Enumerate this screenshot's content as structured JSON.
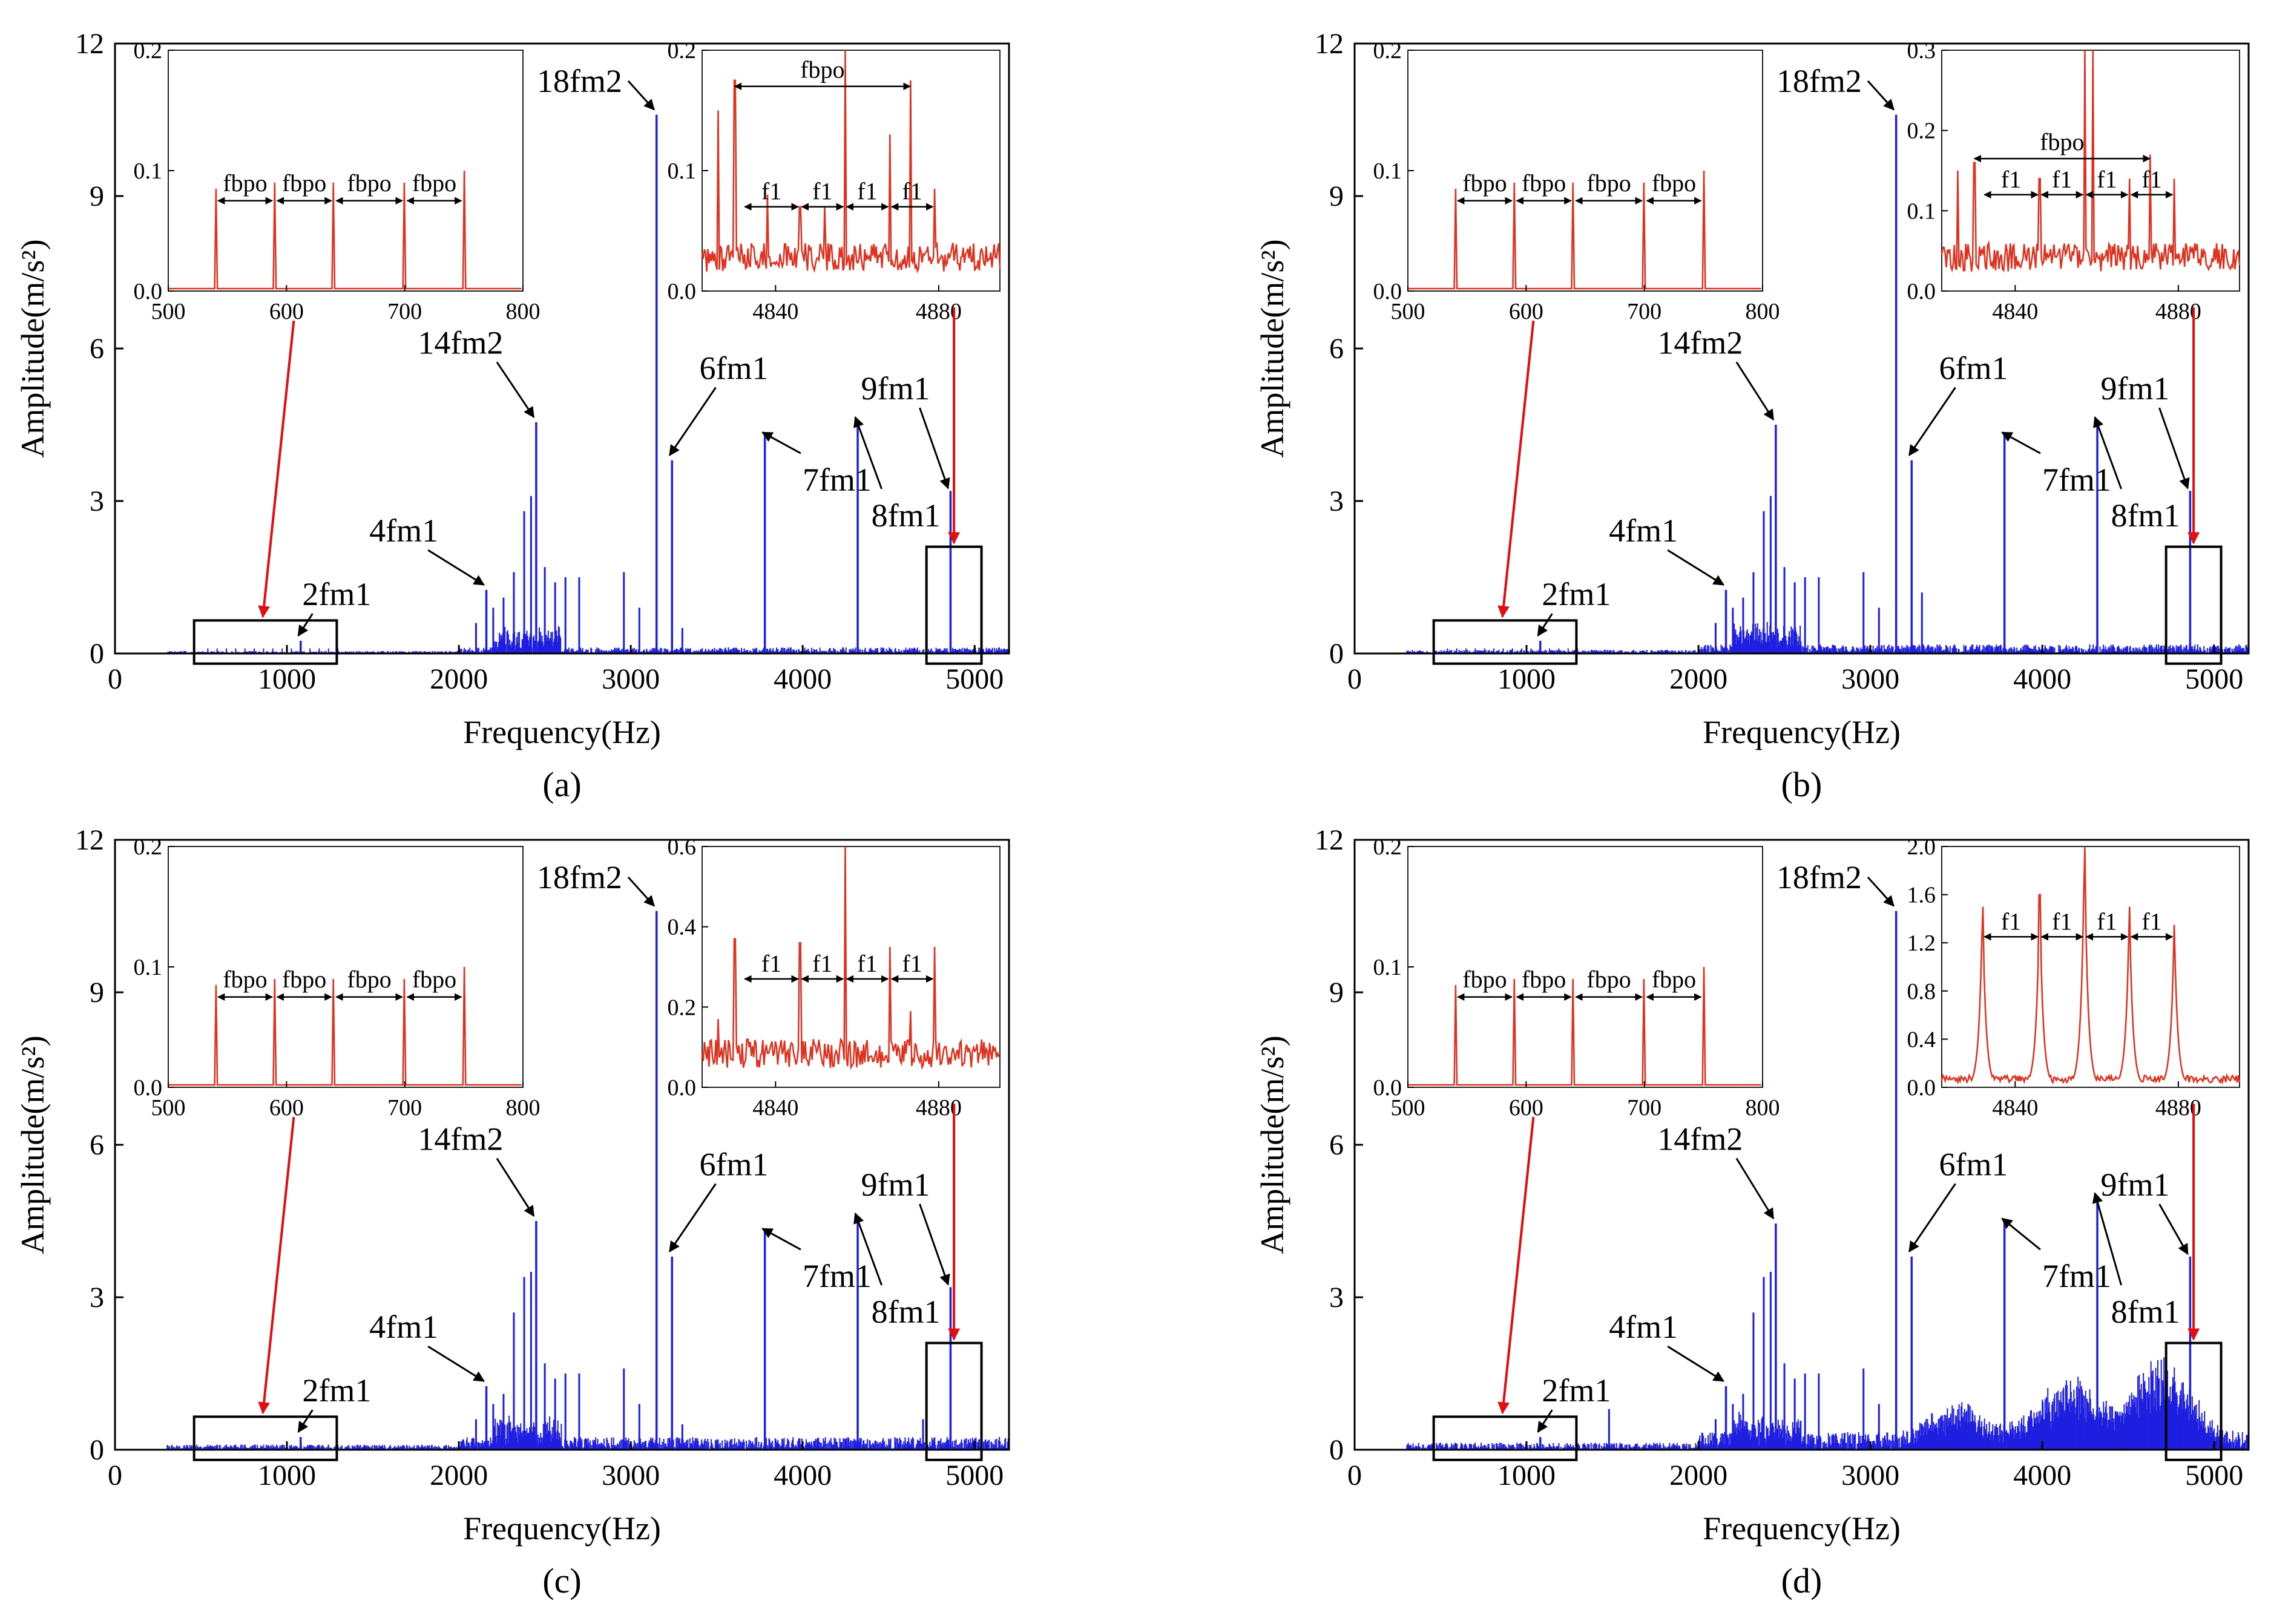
{
  "figure": {
    "panels": [
      "a",
      "b",
      "c",
      "d"
    ]
  },
  "colors": {
    "spectrum": "#1f1fe0",
    "inset": "#e0301e",
    "arrow_red": "#e01010",
    "axis": "#000000",
    "box": "#000000"
  },
  "chart_data": [
    {
      "type": "line",
      "caption": "(a)",
      "xlabel": "Frequency(Hz)",
      "ylabel": "Amplitude(m/s²)",
      "xlim": [
        0,
        5200
      ],
      "ylim": [
        0,
        12
      ],
      "xticks": [
        0,
        1000,
        2000,
        3000,
        4000,
        5000
      ],
      "yticks": [
        0,
        3,
        6,
        9,
        12
      ],
      "peaks": [
        {
          "label": "2fm1",
          "x": 1080,
          "y": 0.25
        },
        {
          "label": "4fm1",
          "x": 2160,
          "y": 1.25
        },
        {
          "label": "14fm2",
          "x": 2450,
          "y": 4.55
        },
        {
          "label": "18fm2",
          "x": 3150,
          "y": 10.6
        },
        {
          "label": "6fm1",
          "x": 3240,
          "y": 3.8
        },
        {
          "label": "7fm1",
          "x": 3780,
          "y": 4.3
        },
        {
          "label": "8fm1",
          "x": 4320,
          "y": 4.6
        },
        {
          "label": "9fm1",
          "x": 4860,
          "y": 3.2
        }
      ],
      "minor_peaks": [
        [
          2100,
          0.6
        ],
        [
          2200,
          0.9
        ],
        [
          2260,
          1.1
        ],
        [
          2320,
          1.6
        ],
        [
          2380,
          2.8
        ],
        [
          2420,
          3.1
        ],
        [
          2500,
          1.7
        ],
        [
          2560,
          1.4
        ],
        [
          2620,
          1.5
        ],
        [
          2700,
          1.5
        ],
        [
          2960,
          1.6
        ],
        [
          3050,
          0.9
        ],
        [
          3300,
          0.5
        ]
      ],
      "noise_level": 0.12,
      "zoom_boxes": [
        {
          "x": [
            460,
            1290
          ],
          "y": [
            -0.2,
            0.65
          ]
        },
        {
          "x": [
            4720,
            5040
          ],
          "y": [
            -0.2,
            2.1
          ]
        }
      ],
      "inset_left": {
        "xlim": [
          500,
          800
        ],
        "ylim": [
          0,
          0.2
        ],
        "xticks": [
          500,
          600,
          700,
          800
        ],
        "yticks": [
          "0.0",
          "0.1",
          "0.2"
        ],
        "peaks": [
          [
            540,
            0.085
          ],
          [
            590,
            0.09
          ],
          [
            640,
            0.09
          ],
          [
            700,
            0.09
          ],
          [
            750,
            0.1
          ]
        ],
        "span_label": "fbpo"
      },
      "inset_right": {
        "xlim": [
          4822,
          4895
        ],
        "ylim": [
          0,
          0.2
        ],
        "xticks": [
          4840,
          4880
        ],
        "yticks": [
          "0.0",
          "0.1",
          "0.2"
        ],
        "peaks": [
          [
            4826,
            0.15
          ],
          [
            4830,
            0.175
          ],
          [
            4838,
            0.08
          ],
          [
            4846,
            0.07
          ],
          [
            4852,
            0.07
          ],
          [
            4857,
            0.2
          ],
          [
            4868,
            0.13
          ],
          [
            4873,
            0.175
          ],
          [
            4879,
            0.085
          ]
        ],
        "top_label": "fbpo",
        "top_span": [
          4830,
          4873
        ],
        "top_y": 0.17,
        "spacing_label": "f1",
        "spacing_marks": [
          4832,
          4846,
          4857,
          4868,
          4879
        ],
        "spacing_y": 0.07
      }
    },
    {
      "type": "line",
      "caption": "(b)",
      "xlabel": "Frequency(Hz)",
      "ylabel": "Amplitude(m/s²)",
      "xlim": [
        0,
        5200
      ],
      "ylim": [
        0,
        12
      ],
      "xticks": [
        0,
        1000,
        2000,
        3000,
        4000,
        5000
      ],
      "yticks": [
        0,
        3,
        6,
        9,
        12
      ],
      "peaks": [
        {
          "label": "2fm1",
          "x": 1080,
          "y": 0.25
        },
        {
          "label": "4fm1",
          "x": 2160,
          "y": 1.25
        },
        {
          "label": "14fm2",
          "x": 2450,
          "y": 4.5
        },
        {
          "label": "18fm2",
          "x": 3150,
          "y": 10.6
        },
        {
          "label": "6fm1",
          "x": 3240,
          "y": 3.8
        },
        {
          "label": "7fm1",
          "x": 3780,
          "y": 4.3
        },
        {
          "label": "8fm1",
          "x": 4320,
          "y": 4.6
        },
        {
          "label": "9fm1",
          "x": 4860,
          "y": 3.2
        }
      ],
      "minor_peaks": [
        [
          2100,
          0.6
        ],
        [
          2200,
          0.9
        ],
        [
          2260,
          1.1
        ],
        [
          2320,
          1.6
        ],
        [
          2380,
          2.8
        ],
        [
          2420,
          3.1
        ],
        [
          2500,
          1.7
        ],
        [
          2560,
          1.4
        ],
        [
          2620,
          1.5
        ],
        [
          2700,
          1.5
        ],
        [
          2960,
          1.6
        ],
        [
          3050,
          0.9
        ],
        [
          3300,
          1.2
        ]
      ],
      "noise_level": 0.18,
      "zoom_boxes": [
        {
          "x": [
            460,
            1290
          ],
          "y": [
            -0.2,
            0.65
          ]
        },
        {
          "x": [
            4720,
            5040
          ],
          "y": [
            -0.2,
            2.1
          ]
        }
      ],
      "inset_left": {
        "xlim": [
          500,
          800
        ],
        "ylim": [
          0,
          0.2
        ],
        "xticks": [
          500,
          600,
          700,
          800
        ],
        "yticks": [
          "0.0",
          "0.1",
          "0.2"
        ],
        "peaks": [
          [
            540,
            0.085
          ],
          [
            590,
            0.09
          ],
          [
            640,
            0.09
          ],
          [
            700,
            0.09
          ],
          [
            750,
            0.1
          ]
        ],
        "span_label": "fbpo"
      },
      "inset_right": {
        "xlim": [
          4822,
          4895
        ],
        "ylim": [
          0,
          0.3
        ],
        "xticks": [
          4840,
          4880
        ],
        "yticks": [
          "0.0",
          "0.1",
          "0.2",
          "0.3"
        ],
        "peaks": [
          [
            4826,
            0.15
          ],
          [
            4830,
            0.16
          ],
          [
            4838,
            0.05
          ],
          [
            4846,
            0.14
          ],
          [
            4857,
            0.3
          ],
          [
            4859,
            0.3
          ],
          [
            4868,
            0.14
          ],
          [
            4873,
            0.17
          ],
          [
            4879,
            0.14
          ]
        ],
        "top_label": "fbpo",
        "top_span": [
          4830,
          4873
        ],
        "top_y": 0.165,
        "spacing_label": "f1",
        "spacing_marks": [
          4832,
          4846,
          4857,
          4868,
          4879
        ],
        "spacing_y": 0.12
      }
    },
    {
      "type": "line",
      "caption": "(c)",
      "xlabel": "Frequency(Hz)",
      "ylabel": "Amplitude(m/s²)",
      "xlim": [
        0,
        5200
      ],
      "ylim": [
        0,
        12
      ],
      "xticks": [
        0,
        1000,
        2000,
        3000,
        4000,
        5000
      ],
      "yticks": [
        0,
        3,
        6,
        9,
        12
      ],
      "peaks": [
        {
          "label": "2fm1",
          "x": 1080,
          "y": 0.25
        },
        {
          "label": "4fm1",
          "x": 2160,
          "y": 1.25
        },
        {
          "label": "14fm2",
          "x": 2450,
          "y": 4.5
        },
        {
          "label": "18fm2",
          "x": 3150,
          "y": 10.6
        },
        {
          "label": "6fm1",
          "x": 3240,
          "y": 3.8
        },
        {
          "label": "7fm1",
          "x": 3780,
          "y": 4.3
        },
        {
          "label": "8fm1",
          "x": 4320,
          "y": 4.6
        },
        {
          "label": "9fm1",
          "x": 4860,
          "y": 3.2
        }
      ],
      "minor_peaks": [
        [
          2100,
          0.6
        ],
        [
          2200,
          0.9
        ],
        [
          2260,
          1.1
        ],
        [
          2320,
          2.7
        ],
        [
          2380,
          3.4
        ],
        [
          2420,
          3.5
        ],
        [
          2500,
          1.7
        ],
        [
          2560,
          1.4
        ],
        [
          2620,
          1.5
        ],
        [
          2700,
          1.5
        ],
        [
          2960,
          1.6
        ],
        [
          3050,
          0.9
        ],
        [
          3300,
          0.5
        ],
        [
          4700,
          0.6
        ]
      ],
      "noise_level": 0.25,
      "zoom_boxes": [
        {
          "x": [
            460,
            1290
          ],
          "y": [
            -0.2,
            0.65
          ]
        },
        {
          "x": [
            4720,
            5040
          ],
          "y": [
            -0.2,
            2.1
          ]
        }
      ],
      "inset_left": {
        "xlim": [
          500,
          800
        ],
        "ylim": [
          0,
          0.2
        ],
        "xticks": [
          500,
          600,
          700,
          800
        ],
        "yticks": [
          "0.0",
          "0.1",
          "0.2"
        ],
        "peaks": [
          [
            540,
            0.085
          ],
          [
            590,
            0.09
          ],
          [
            640,
            0.09
          ],
          [
            700,
            0.09
          ],
          [
            750,
            0.1
          ]
        ],
        "span_label": "fbpo"
      },
      "inset_right": {
        "xlim": [
          4822,
          4895
        ],
        "ylim": [
          0,
          0.6
        ],
        "xticks": [
          4840,
          4880
        ],
        "yticks": [
          "0.0",
          "0.2",
          "0.4",
          "0.6"
        ],
        "peaks": [
          [
            4826,
            0.17
          ],
          [
            4830,
            0.37
          ],
          [
            4846,
            0.36
          ],
          [
            4857,
            0.6
          ],
          [
            4868,
            0.35
          ],
          [
            4873,
            0.19
          ],
          [
            4879,
            0.35
          ]
        ],
        "top_label": "",
        "spacing_label": "f1",
        "spacing_marks": [
          4832,
          4846,
          4857,
          4868,
          4879
        ],
        "spacing_y": 0.27
      }
    },
    {
      "type": "line",
      "caption": "(d)",
      "xlabel": "Frequency(Hz)",
      "ylabel": "Amplitude(m/s²)",
      "xlim": [
        0,
        5200
      ],
      "ylim": [
        0,
        12
      ],
      "xticks": [
        0,
        1000,
        2000,
        3000,
        4000,
        5000
      ],
      "yticks": [
        0,
        3,
        6,
        9,
        12
      ],
      "peaks": [
        {
          "label": "2fm1",
          "x": 1080,
          "y": 0.25
        },
        {
          "label": "4fm1",
          "x": 2160,
          "y": 1.25
        },
        {
          "label": "14fm2",
          "x": 2450,
          "y": 4.45
        },
        {
          "label": "18fm2",
          "x": 3150,
          "y": 10.6
        },
        {
          "label": "6fm1",
          "x": 3240,
          "y": 3.8
        },
        {
          "label": "7fm1",
          "x": 3780,
          "y": 4.5
        },
        {
          "label": "8fm1",
          "x": 4320,
          "y": 5.0
        },
        {
          "label": "9fm1",
          "x": 4860,
          "y": 3.8
        }
      ],
      "minor_peaks": [
        [
          1480,
          0.8
        ],
        [
          2100,
          0.6
        ],
        [
          2200,
          0.9
        ],
        [
          2260,
          1.1
        ],
        [
          2320,
          2.7
        ],
        [
          2380,
          3.4
        ],
        [
          2420,
          3.5
        ],
        [
          2500,
          1.7
        ],
        [
          2560,
          1.4
        ],
        [
          2620,
          1.5
        ],
        [
          2700,
          1.5
        ],
        [
          2960,
          1.6
        ],
        [
          3050,
          0.9
        ],
        [
          3300,
          0.5
        ]
      ],
      "noise_level": 0.35,
      "humps": [
        [
          3500,
          0.7,
          200
        ],
        [
          4150,
          1.2,
          250
        ],
        [
          4700,
          1.7,
          220
        ]
      ],
      "zoom_boxes": [
        {
          "x": [
            460,
            1290
          ],
          "y": [
            -0.2,
            0.65
          ]
        },
        {
          "x": [
            4720,
            5040
          ],
          "y": [
            -0.2,
            2.1
          ]
        }
      ],
      "inset_left": {
        "xlim": [
          500,
          800
        ],
        "ylim": [
          0,
          0.2
        ],
        "xticks": [
          500,
          600,
          700,
          800
        ],
        "yticks": [
          "0.0",
          "0.1",
          "0.2"
        ],
        "peaks": [
          [
            540,
            0.085
          ],
          [
            590,
            0.09
          ],
          [
            640,
            0.09
          ],
          [
            700,
            0.09
          ],
          [
            750,
            0.1
          ]
        ],
        "span_label": "fbpo"
      },
      "inset_right": {
        "xlim": [
          4822,
          4895
        ],
        "ylim": [
          0,
          2.0
        ],
        "xticks": [
          4840,
          4880
        ],
        "yticks": [
          "0.0",
          "0.4",
          "0.8",
          "1.2",
          "1.6",
          "2.0"
        ],
        "peaks": [
          [
            4832,
            1.5
          ],
          [
            4846,
            1.6
          ],
          [
            4857,
            2.0
          ],
          [
            4868,
            1.5
          ],
          [
            4879,
            1.35
          ]
        ],
        "top_label": "",
        "spacing_label": "f1",
        "spacing_marks": [
          4832,
          4846,
          4857,
          4868,
          4879
        ],
        "spacing_y": 1.25
      }
    }
  ]
}
